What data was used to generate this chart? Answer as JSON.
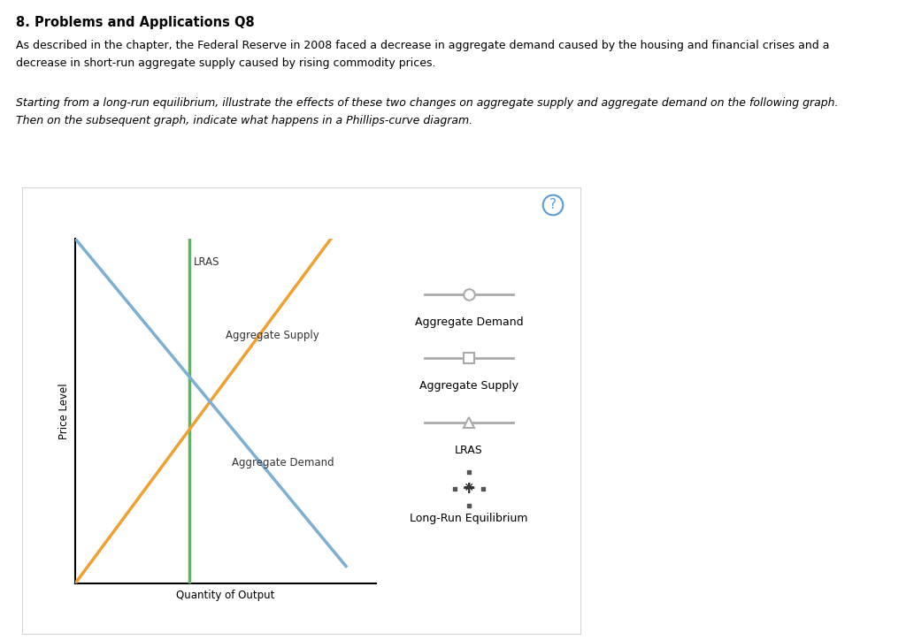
{
  "title": "8. Problems and Applications Q8",
  "title_fontsize": 10.5,
  "body_text_1": "As described in the chapter, the Federal Reserve in 2008 faced a decrease in aggregate demand caused by the housing and financial crises and a",
  "body_text_2": "decrease in short-run aggregate supply caused by rising commodity prices.",
  "italic_text_1": "Starting from a long-run equilibrium, illustrate the effects of these two changes on aggregate supply and aggregate demand on the following graph.",
  "italic_text_2": "Then on the subsequent graph, indicate what happens in a Phillips-curve diagram.",
  "bg_color": "#ffffff",
  "panel_bg": "#ffffff",
  "panel_border": "#cccccc",
  "ylabel": "Price Level",
  "xlabel": "Quantity of Output",
  "lras_color": "#5cb85c",
  "as_color": "#f0a030",
  "ad_color": "#7bafd4",
  "lras_label": "LRAS",
  "as_label": "Aggregate Supply",
  "ad_label": "Aggregate Demand",
  "legend_line_color": "#aaaaaa",
  "legend_ad_label": "Aggregate Demand",
  "legend_as_label": "Aggregate Supply",
  "legend_lras_label": "LRAS",
  "legend_eq_label": "Long-Run Equilibrium",
  "question_circle_color": "#5b9bd5",
  "text_color": "#000000",
  "body_fontsize": 9.0,
  "italic_fontsize": 9.0,
  "legend_fontsize": 9.0,
  "graph_label_fontsize": 8.5
}
